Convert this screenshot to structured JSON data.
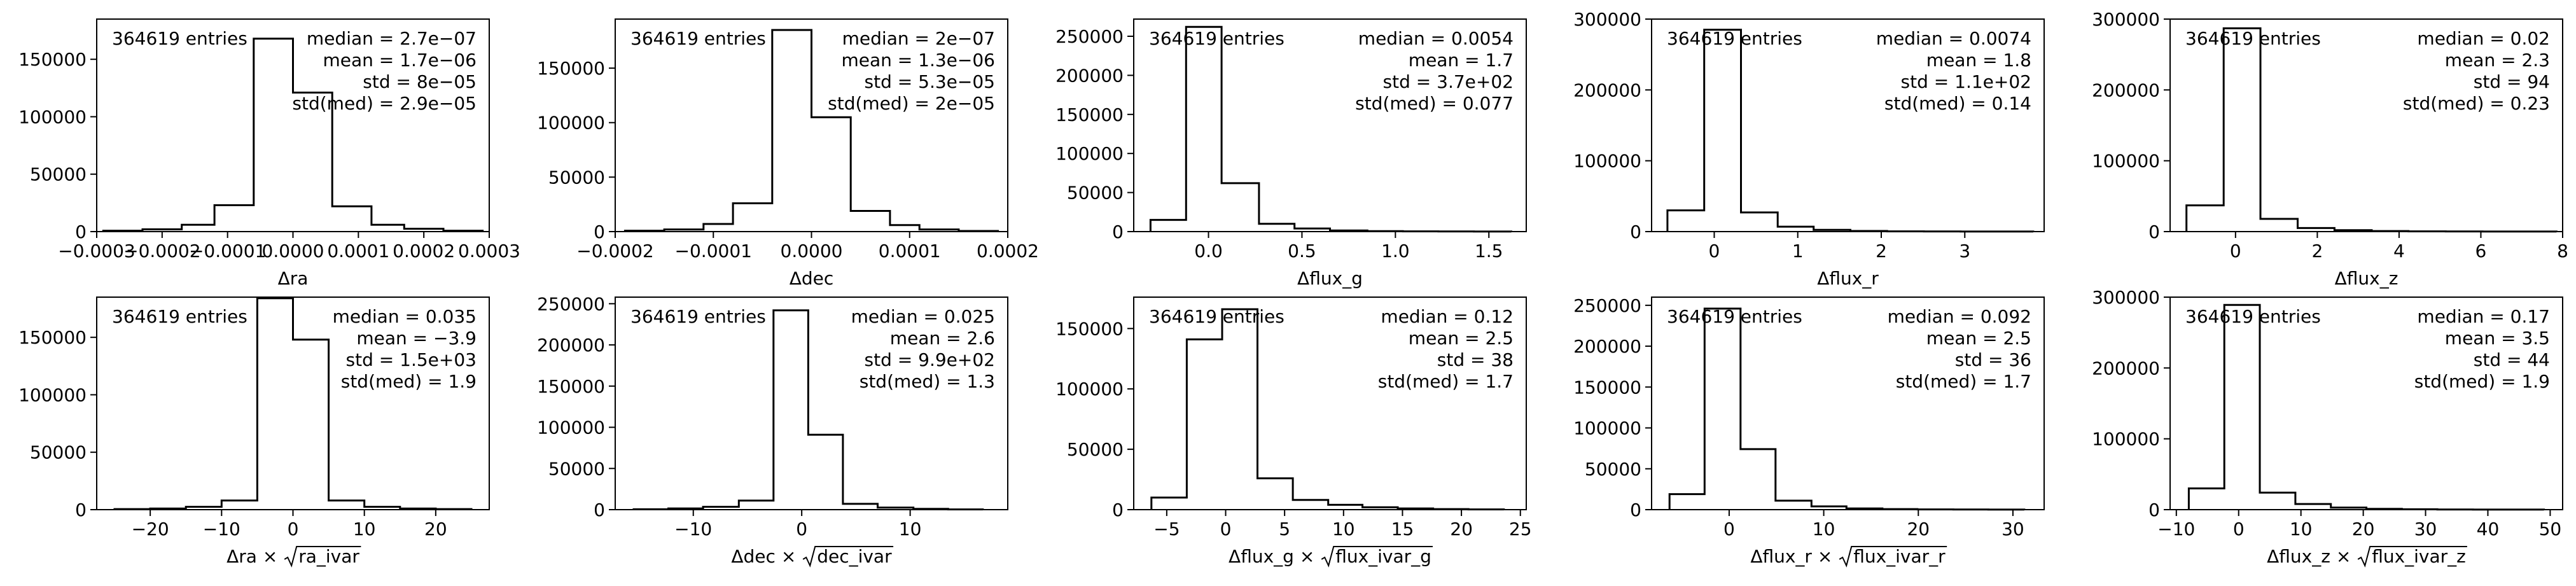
{
  "chart_data": [
    {
      "type": "histogram",
      "xlabel": "Δra",
      "xlim": [
        -0.0003,
        0.0003
      ],
      "ylim": [
        0,
        185000
      ],
      "xticks": [
        -0.0003,
        -0.0002,
        -0.0001,
        0.0,
        0.0001,
        0.0002,
        0.0003
      ],
      "xtick_labels": [
        "−0.0003",
        "−0.0002",
        "−0.0001",
        "0.0000",
        "0.0001",
        "0.0002",
        "0.0003"
      ],
      "yticks": [
        0,
        50000,
        100000,
        150000
      ],
      "ytick_labels": [
        "0",
        "50000",
        "100000",
        "150000"
      ],
      "bin_edges": [
        -0.00029,
        -0.00023,
        -0.00017,
        -0.00012,
        -6e-05,
        0.0,
        6e-05,
        0.00012,
        0.00017,
        0.00023,
        0.00029
      ],
      "counts": [
        800,
        2000,
        6000,
        23000,
        168000,
        121000,
        22000,
        6000,
        2500,
        800
      ],
      "entries_text": "364619 entries",
      "stats": [
        "median = 2.7e−07",
        "mean = 1.7e−06",
        "std = 8e−05",
        "std(med) = 2.9e−05"
      ]
    },
    {
      "type": "histogram",
      "xlabel": "Δdec",
      "xlim": [
        -0.0002,
        0.0002
      ],
      "ylim": [
        0,
        195000
      ],
      "xticks": [
        -0.0002,
        -0.0001,
        0.0,
        0.0001,
        0.0002
      ],
      "xtick_labels": [
        "−0.0002",
        "−0.0001",
        "0.0000",
        "0.0001",
        "0.0002"
      ],
      "yticks": [
        0,
        50000,
        100000,
        150000
      ],
      "ytick_labels": [
        "0",
        "50000",
        "100000",
        "150000"
      ],
      "bin_edges": [
        -0.00019,
        -0.00015,
        -0.00011,
        -8e-05,
        -4e-05,
        0.0,
        4e-05,
        8e-05,
        0.00011,
        0.00015,
        0.00019
      ],
      "counts": [
        800,
        2000,
        7000,
        26000,
        185000,
        105000,
        19000,
        6000,
        2000,
        600
      ],
      "entries_text": "364619 entries",
      "stats": [
        "median = 2e−07",
        "mean = 1.3e−06",
        "std = 5.3e−05",
        "std(med) = 2e−05"
      ]
    },
    {
      "type": "histogram",
      "xlabel": "Δflux_g",
      "xlim": [
        -0.4,
        1.7
      ],
      "ylim": [
        0,
        272000
      ],
      "xticks": [
        0.0,
        0.5,
        1.0,
        1.5
      ],
      "xtick_labels": [
        "0.0",
        "0.5",
        "1.0",
        "1.5"
      ],
      "yticks": [
        0,
        50000,
        100000,
        150000,
        200000,
        250000
      ],
      "ytick_labels": [
        "0",
        "50000",
        "100000",
        "150000",
        "200000",
        "250000"
      ],
      "bin_edges": [
        -0.31,
        -0.12,
        0.07,
        0.27,
        0.46,
        0.65,
        0.85,
        1.04,
        1.23,
        1.42,
        1.62
      ],
      "counts": [
        15000,
        262000,
        62000,
        10000,
        4000,
        1500,
        600,
        300,
        150,
        80
      ],
      "entries_text": "364619 entries",
      "stats": [
        "median = 0.0054",
        "mean = 1.7",
        "std = 3.7e+02",
        "std(med) = 0.077"
      ]
    },
    {
      "type": "histogram",
      "xlabel": "Δflux_r",
      "xlim": [
        -0.75,
        3.95
      ],
      "ylim": [
        0,
        300000
      ],
      "xticks": [
        0,
        1,
        2,
        3
      ],
      "xtick_labels": [
        "0",
        "1",
        "2",
        "3"
      ],
      "yticks": [
        0,
        100000,
        200000,
        300000
      ],
      "ytick_labels": [
        "0",
        "100000",
        "200000",
        "300000"
      ],
      "bin_edges": [
        -0.56,
        -0.12,
        0.32,
        0.76,
        1.19,
        1.63,
        2.07,
        2.51,
        2.95,
        3.38,
        3.82
      ],
      "counts": [
        30000,
        285000,
        27000,
        7000,
        2500,
        900,
        400,
        200,
        100,
        50
      ],
      "entries_text": "364619 entries",
      "stats": [
        "median = 0.0074",
        "mean = 1.8",
        "std = 1.1e+02",
        "std(med) = 0.14"
      ]
    },
    {
      "type": "histogram",
      "xlabel": "Δflux_z",
      "xlim": [
        -1.6,
        8.0
      ],
      "ylim": [
        0,
        300000
      ],
      "xticks": [
        0,
        2,
        4,
        6,
        8
      ],
      "xtick_labels": [
        "0",
        "2",
        "4",
        "6",
        "8"
      ],
      "yticks": [
        0,
        100000,
        200000,
        300000
      ],
      "ytick_labels": [
        "0",
        "100000",
        "200000",
        "300000"
      ],
      "bin_edges": [
        -1.2,
        -0.29,
        0.61,
        1.52,
        2.42,
        3.33,
        4.23,
        5.14,
        6.04,
        6.95,
        7.85
      ],
      "counts": [
        37000,
        287000,
        18000,
        5000,
        2000,
        800,
        400,
        200,
        100,
        50
      ],
      "entries_text": "364619 entries",
      "stats": [
        "median = 0.02",
        "mean = 2.3",
        "std = 94",
        "std(med) = 0.23"
      ]
    },
    {
      "type": "histogram",
      "xlabel_main": "Δra × ",
      "xlabel_sqrt": "ra_ivar",
      "xlim": [
        -27.5,
        27.5
      ],
      "ylim": [
        0,
        185000
      ],
      "xticks": [
        -20,
        -10,
        0,
        10,
        20
      ],
      "xtick_labels": [
        "−20",
        "−10",
        "0",
        "10",
        "20"
      ],
      "yticks": [
        0,
        50000,
        100000,
        150000
      ],
      "ytick_labels": [
        "0",
        "50000",
        "100000",
        "150000"
      ],
      "bin_edges": [
        -25,
        -20,
        -15,
        -10,
        -5,
        0,
        5,
        10,
        15,
        20,
        25
      ],
      "counts": [
        500,
        1000,
        2500,
        8000,
        184000,
        148000,
        8000,
        2500,
        1000,
        500
      ],
      "entries_text": "364619 entries",
      "stats": [
        "median = 0.035",
        "mean = −3.9",
        "std = 1.5e+03",
        "std(med) = 1.9"
      ]
    },
    {
      "type": "histogram",
      "xlabel_main": "Δdec × ",
      "xlabel_sqrt": "dec_ivar",
      "xlim": [
        -17.2,
        19.0
      ],
      "ylim": [
        0,
        258000
      ],
      "xticks": [
        -10,
        0,
        10
      ],
      "xtick_labels": [
        "−10",
        "0",
        "10"
      ],
      "yticks": [
        0,
        50000,
        100000,
        150000,
        200000,
        250000
      ],
      "ytick_labels": [
        "0",
        "50000",
        "100000",
        "150000",
        "200000",
        "250000"
      ],
      "bin_edges": [
        -15.5,
        -12.3,
        -9.1,
        -5.8,
        -2.6,
        0.6,
        3.8,
        7.0,
        10.3,
        13.5,
        16.7
      ],
      "counts": [
        500,
        1500,
        3500,
        11000,
        242000,
        91000,
        7000,
        2500,
        900,
        300
      ],
      "entries_text": "364619 entries",
      "stats": [
        "median = 0.025",
        "mean = 2.6",
        "std = 9.9e+02",
        "std(med) = 1.3"
      ]
    },
    {
      "type": "histogram",
      "xlabel_main": "Δflux_g × ",
      "xlabel_sqrt": "flux_ivar_g",
      "xlim": [
        -7.8,
        25.5
      ],
      "ylim": [
        0,
        176000
      ],
      "xticks": [
        -5,
        0,
        5,
        10,
        15,
        20,
        25
      ],
      "xtick_labels": [
        "−5",
        "0",
        "5",
        "10",
        "15",
        "20",
        "25"
      ],
      "yticks": [
        0,
        50000,
        100000,
        150000
      ],
      "ytick_labels": [
        "0",
        "50000",
        "100000",
        "150000"
      ],
      "bin_edges": [
        -6.3,
        -3.3,
        -0.3,
        2.7,
        5.7,
        8.7,
        11.6,
        14.6,
        17.6,
        20.6,
        23.6
      ],
      "counts": [
        10000,
        141000,
        166000,
        26000,
        8000,
        4000,
        2000,
        1000,
        500,
        200
      ],
      "entries_text": "364619 entries",
      "stats": [
        "median = 0.12",
        "mean = 2.5",
        "std = 38",
        "std(med) = 1.7"
      ]
    },
    {
      "type": "histogram",
      "xlabel_main": "Δflux_r × ",
      "xlabel_sqrt": "flux_ivar_r",
      "xlim": [
        -8.2,
        33.3
      ],
      "ylim": [
        0,
        260000
      ],
      "xticks": [
        0,
        10,
        20,
        30
      ],
      "xtick_labels": [
        "0",
        "10",
        "20",
        "30"
      ],
      "bin_edges": [
        -6.3,
        -2.6,
        1.2,
        4.9,
        8.7,
        12.4,
        16.2,
        19.9,
        23.7,
        27.4,
        31.2
      ],
      "yticks": [
        0,
        50000,
        100000,
        150000,
        200000,
        250000
      ],
      "ytick_labels": [
        "0",
        "50000",
        "100000",
        "150000",
        "200000",
        "250000"
      ],
      "counts": [
        19000,
        246000,
        74000,
        11000,
        4000,
        1500,
        700,
        300,
        150,
        80
      ],
      "entries_text": "364619 entries",
      "stats": [
        "median = 0.092",
        "mean = 2.5",
        "std = 36",
        "std(med) = 1.7"
      ]
    },
    {
      "type": "histogram",
      "xlabel_main": "Δflux_z × ",
      "xlabel_sqrt": "flux_ivar_z",
      "xlim": [
        -11.0,
        52.0
      ],
      "ylim": [
        0,
        300000
      ],
      "xticks": [
        -10,
        0,
        10,
        20,
        30,
        40,
        50
      ],
      "xtick_labels": [
        "−10",
        "0",
        "10",
        "20",
        "30",
        "40",
        "50"
      ],
      "yticks": [
        0,
        100000,
        200000,
        300000
      ],
      "ytick_labels": [
        "0",
        "100000",
        "200000",
        "300000"
      ],
      "bin_edges": [
        -8.0,
        -2.3,
        3.4,
        9.1,
        14.8,
        20.5,
        26.2,
        31.9,
        37.6,
        43.3,
        49.0
      ],
      "counts": [
        30000,
        289000,
        24000,
        8000,
        3000,
        1200,
        500,
        250,
        120,
        60
      ],
      "entries_text": "364619 entries",
      "stats": [
        "median = 0.17",
        "mean = 3.5",
        "std = 44",
        "std(med) = 1.9"
      ]
    }
  ]
}
